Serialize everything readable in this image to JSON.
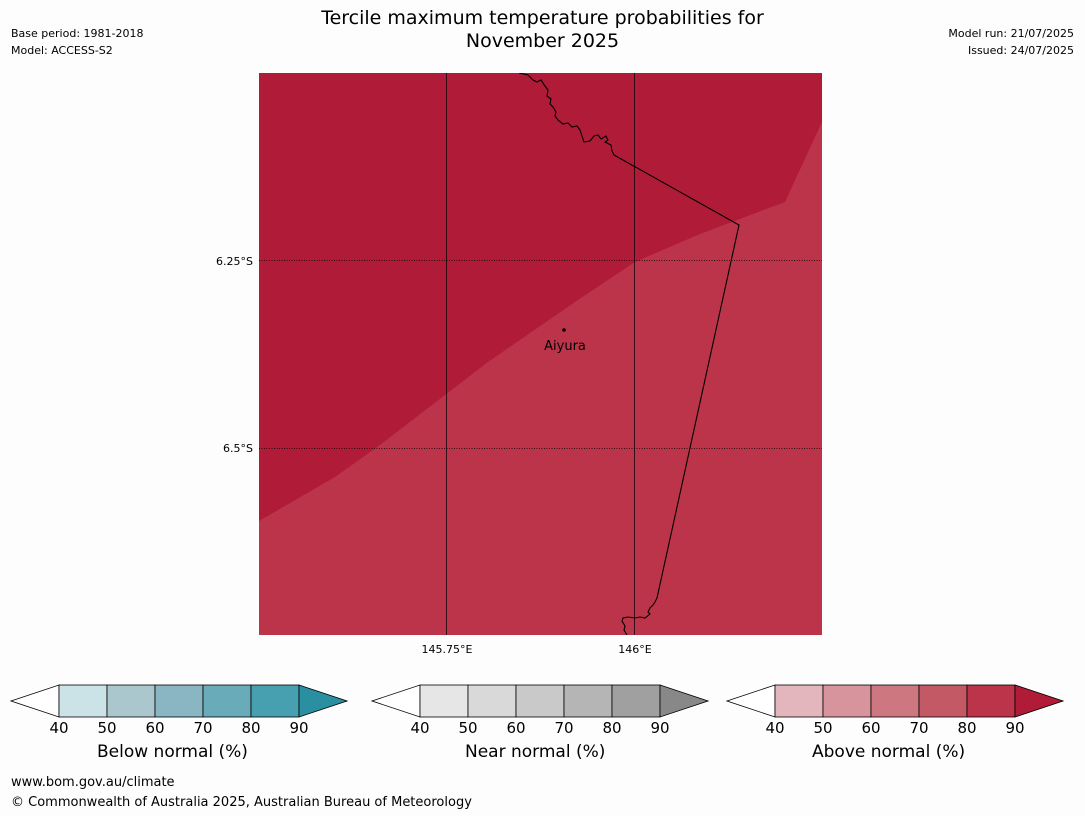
{
  "header": {
    "base_period": "Base period: 1981-2018",
    "model": "Model: ACCESS-S2",
    "title_line1": "Tercile maximum temperature probabilities for",
    "title_line2": "November 2025",
    "model_run": "Model run: 21/07/2025",
    "issued": "Issued: 24/07/2025"
  },
  "map": {
    "lat_labels": [
      "6.25°S",
      "6.5°S"
    ],
    "lon_labels": [
      "145.75°E",
      "146°E"
    ],
    "place_label": "Aiyura",
    "fill_colors": {
      "upper": "#b01c38",
      "lower": "#bc344a"
    },
    "border_color": "#000000"
  },
  "colorbars": [
    {
      "name": "below",
      "label": "Below normal (%)",
      "ticks": [
        "40",
        "50",
        "60",
        "70",
        "80",
        "90"
      ],
      "colors": [
        "#ffffff",
        "#cbe2e7",
        "#a9c7cd",
        "#8ab6c3",
        "#6aabb9",
        "#46a0b0",
        "#2a8fa1"
      ]
    },
    {
      "name": "near",
      "label": "Near normal (%)",
      "ticks": [
        "40",
        "50",
        "60",
        "70",
        "80",
        "90"
      ],
      "colors": [
        "#ffffff",
        "#e6e6e6",
        "#d9d9d9",
        "#c9c9c9",
        "#b5b5b5",
        "#a0a0a0",
        "#888888"
      ]
    },
    {
      "name": "above",
      "label": "Above normal (%)",
      "ticks": [
        "40",
        "50",
        "60",
        "70",
        "80",
        "90"
      ],
      "colors": [
        "#ffffff",
        "#e2b6bc",
        "#d7949c",
        "#cd7880",
        "#c45966",
        "#bc344a",
        "#b01c38"
      ]
    }
  ],
  "footer": {
    "url": "www.bom.gov.au/climate",
    "copyright": "© Commonwealth of Australia 2025, Australian Bureau of Meteorology"
  }
}
